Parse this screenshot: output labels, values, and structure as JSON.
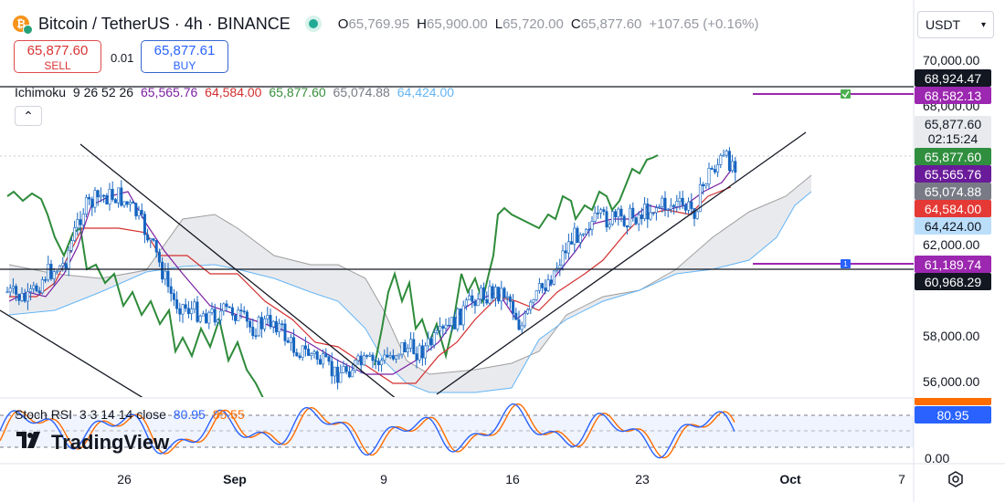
{
  "header": {
    "title": "Bitcoin / TetherUS · 4h · BINANCE",
    "ohlc": [
      {
        "key": "O",
        "value": "65,769.95"
      },
      {
        "key": "H",
        "value": "65,900.00"
      },
      {
        "key": "L",
        "value": "65,720.00"
      },
      {
        "key": "C",
        "value": "65,877.60"
      }
    ],
    "change": "+107.65 (+0.16%)",
    "coin_icon": "bitcoin-icon",
    "colors": {
      "bitcoin": "#f7931a",
      "tether": "#26a17b",
      "live": "#22ab94"
    }
  },
  "trade": {
    "sell_price": "65,877.60",
    "sell_label": "SELL",
    "spread": "0.01",
    "buy_price": "65,877.61",
    "buy_label": "BUY"
  },
  "currency_select": {
    "value": "USDT",
    "icon": "chevron-down-icon"
  },
  "ichimoku": {
    "name": "Ichimoku",
    "params": "9 26 52 26",
    "values": [
      {
        "text": "65,565.76",
        "color": "#7b1fa2"
      },
      {
        "text": "64,584.00",
        "color": "#d32f2f"
      },
      {
        "text": "65,877.60",
        "color": "#388e3c"
      },
      {
        "text": "65,074.88",
        "color": "#787b86"
      },
      {
        "text": "64,424.00",
        "color": "#64b5f6"
      }
    ]
  },
  "stoch_rsi": {
    "name": "Stoch RSI",
    "params": "3 3 14 14 close",
    "k": "80.95",
    "d": "85.55",
    "colors": {
      "k": "#2962ff",
      "d": "#ff6d00"
    }
  },
  "logo": {
    "text": "TradingView",
    "icon": "tradingview-logo-icon"
  },
  "price_axis": {
    "labels": [
      "70,000.00",
      "68,000.00",
      "62,000.00",
      "58,000.00",
      "56,000.00"
    ],
    "tags": [
      {
        "text": "68,924.47",
        "bg": "#131722"
      },
      {
        "text": "68,582.13",
        "bg": "#9c27b0"
      },
      {
        "text": "65,877.60",
        "bg": "#2f8f3e"
      },
      {
        "text": "65,565.76",
        "bg": "#6a1b9a"
      },
      {
        "text": "65,074.88",
        "bg": "#787b86"
      },
      {
        "text": "64,584.00",
        "bg": "#e53935"
      },
      {
        "text": "64,424.00",
        "bg": "#64b5f6"
      },
      {
        "text": "61,189.74",
        "bg": "#9c27b0"
      },
      {
        "text": "60,968.29",
        "bg": "#131722"
      }
    ],
    "countdown_price": "65,877.60",
    "countdown": "02:15:24"
  },
  "rsi_axis": {
    "label_zero": "0.00",
    "tag_k": "80.95"
  },
  "time_axis": {
    "labels": [
      "26",
      "Sep",
      "9",
      "16",
      "23",
      "Oct",
      "7"
    ]
  }
}
